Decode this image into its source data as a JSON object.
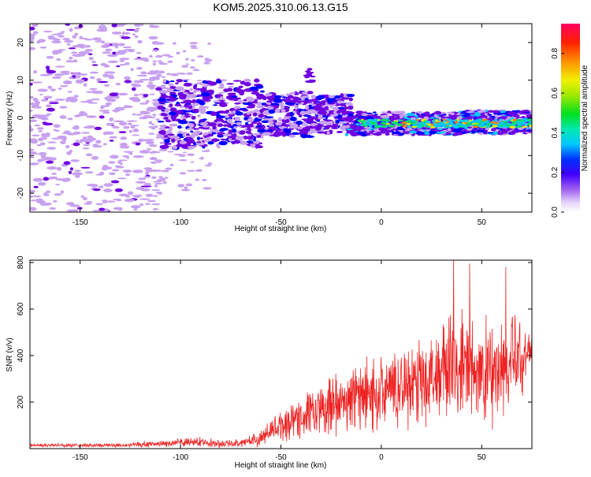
{
  "figure_title": "KOM5.2025.310.06.13.G15",
  "colors": {
    "snr_line": "#ee2222",
    "colormap": [
      "#c8a0f0",
      "#7000e0",
      "#0000ff",
      "#00c8ff",
      "#00e060",
      "#e8e800",
      "#ff8000",
      "#ff0050"
    ]
  },
  "chart_data": [
    {
      "type": "heatmap",
      "xlabel": "Height of straight line (km)",
      "ylabel": "Frequency (Hz)",
      "xlim": [
        -175,
        75
      ],
      "ylim": [
        -25,
        25
      ],
      "xticks": [
        -150,
        -100,
        -50,
        0,
        50
      ],
      "xtick_labels": [
        "-150",
        "-100",
        "-50",
        "0",
        "50"
      ],
      "yticks": [
        -20,
        -10,
        0,
        10,
        20
      ],
      "ytick_labels": [
        "-20",
        "-10",
        "0",
        "10",
        "20"
      ],
      "colorbar": {
        "label": "Normalized spectral amplitude",
        "range": [
          0,
          0.95
        ],
        "ticks": [
          0.0,
          0.2,
          0.4,
          0.6,
          0.8
        ],
        "tick_labels": [
          "0.0",
          "0.2",
          "0.4",
          "0.6",
          "0.8"
        ]
      },
      "description_regions": [
        {
          "x": [
            -175,
            -110
          ],
          "freq_range": [
            -25,
            25
          ],
          "amplitude": 0.05
        },
        {
          "x": [
            -110,
            -35
          ],
          "freq_range": [
            -7,
            12
          ],
          "amplitude": 0.1
        },
        {
          "x": [
            -15,
            75
          ],
          "freq_center": -1.5,
          "freq_halfwidth": 3,
          "amplitude": 0.25
        }
      ]
    },
    {
      "type": "line",
      "xlabel": "Height of straight line (km)",
      "ylabel": "SNR (v/v)",
      "xlim": [
        -175,
        75
      ],
      "ylim": [
        0,
        810
      ],
      "xticks": [
        -150,
        -100,
        -50,
        0,
        50
      ],
      "xtick_labels": [
        "-150",
        "-100",
        "-50",
        "0",
        "50"
      ],
      "yticks": [
        200,
        400,
        600,
        800
      ],
      "ytick_labels": [
        "200",
        "400",
        "600",
        "800"
      ],
      "series": [
        {
          "name": "SNR",
          "envelope": {
            "x": [
              -175,
              -150,
              -125,
              -100,
              -90,
              -80,
              -70,
              -60,
              -50,
              -40,
              -30,
              -20,
              -10,
              0,
              10,
              20,
              30,
              40,
              50,
              60,
              70,
              75
            ],
            "mean": [
              15,
              14,
              16,
              25,
              30,
              20,
              25,
              45,
              100,
              140,
              160,
              200,
              230,
              240,
              270,
              300,
              330,
              350,
              320,
              340,
              380,
              440
            ],
            "spread": [
              8,
              8,
              10,
              18,
              20,
              15,
              18,
              35,
              70,
              100,
              110,
              130,
              150,
              160,
              170,
              200,
              230,
              250,
              240,
              230,
              200,
              40
            ]
          },
          "peaks": [
            {
              "x": 36,
              "y": 810
            },
            {
              "x": 44,
              "y": 795
            },
            {
              "x": 62,
              "y": 780
            }
          ]
        }
      ]
    }
  ]
}
